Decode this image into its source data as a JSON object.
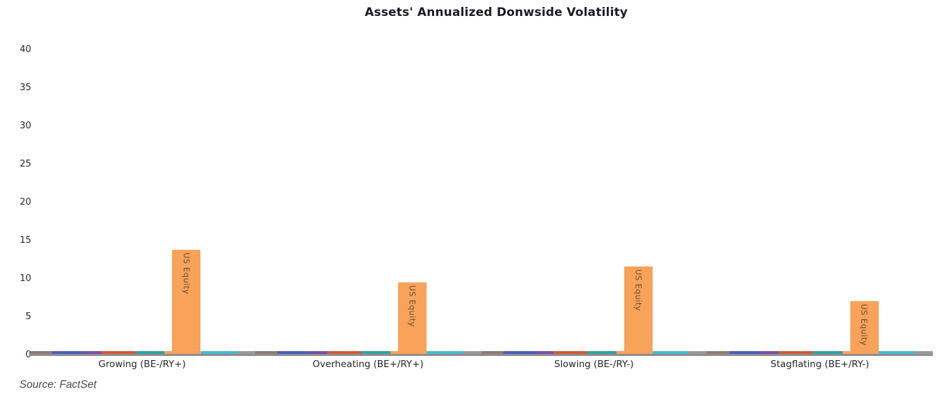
{
  "title": "Assets' Annualized Donwside Volatility",
  "source_note": "Source: FactSet",
  "colors": {
    "background": "#ffffff",
    "bar_fill": "#F8A25A",
    "bar_label_text": "#3e3832",
    "axis_line": "#8f8f8f",
    "tick_text": "#262626",
    "title_text": "#1b1b22",
    "source_text": "#4a4a4a"
  },
  "chart_data": {
    "type": "bar",
    "title": "Assets' Annualized Donwside Volatility",
    "categories": [
      "Growing (BE-/RY+)",
      "Overheating (BE+/RY+)",
      "Slowing (BE-/RY-)",
      "Stagflating (BE+/RY-)"
    ],
    "series": [
      {
        "name": "US Equity",
        "values": [
          13.6,
          9.4,
          11.5,
          6.9
        ],
        "color": "#F8A25A"
      }
    ],
    "bar_value_labels": "series name rotated 90deg inside each bar",
    "xlabel": "",
    "ylabel": "",
    "ylim": [
      0,
      40
    ],
    "yticks": [
      0,
      5,
      10,
      15,
      20,
      25,
      30,
      35,
      40
    ],
    "grid": false,
    "legend_position": "none",
    "axis_line_color": "#8f8f8f",
    "baseline_stops": [
      [
        "#8f7a72",
        0.0,
        0.1
      ],
      [
        "#4a5fc1",
        0.1,
        0.24
      ],
      [
        "#7b4fa6",
        0.24,
        0.32
      ],
      [
        "#d35a35",
        0.32,
        0.47
      ],
      [
        "#2fa3a0",
        0.47,
        0.6
      ],
      [
        "#f8a25a",
        0.6,
        0.76
      ],
      [
        "#45b9d9",
        0.76,
        0.92
      ],
      [
        "#9a9a9a",
        0.92,
        1.0
      ]
    ]
  }
}
